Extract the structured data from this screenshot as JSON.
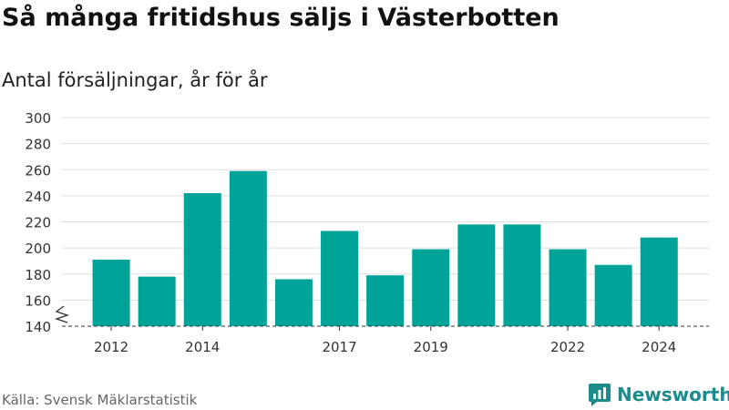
{
  "title": "Så många fritidshus säljs i Västerbotten",
  "subtitle": "Antal försäljningar, år för år",
  "source": "Källa: Svensk Mäklarstatistik",
  "brand": {
    "name": "Newsworthy",
    "icon": "newsworthy-logo-icon"
  },
  "colors": {
    "bar": "#00a398",
    "grid": "#dddddd",
    "axis": "#333333",
    "brand": "#1a8c8c"
  },
  "chart_data": {
    "type": "bar",
    "title": "Så många fritidshus säljs i Västerbotten",
    "subtitle": "Antal försäljningar, år för år",
    "categories": [
      "2012",
      "2013",
      "2014",
      "2015",
      "2016",
      "2017",
      "2018",
      "2019",
      "2020",
      "2021",
      "2022",
      "2023",
      "2024"
    ],
    "values": [
      191,
      178,
      242,
      259,
      176,
      213,
      179,
      199,
      218,
      218,
      199,
      187,
      208
    ],
    "ylim": [
      140,
      300
    ],
    "yticks": [
      140,
      160,
      180,
      200,
      220,
      240,
      260,
      280,
      300
    ],
    "xtick_labels": [
      "2012",
      "2014",
      "2017",
      "2019",
      "2022",
      "2024"
    ],
    "y_axis_break": true,
    "grid": true
  }
}
